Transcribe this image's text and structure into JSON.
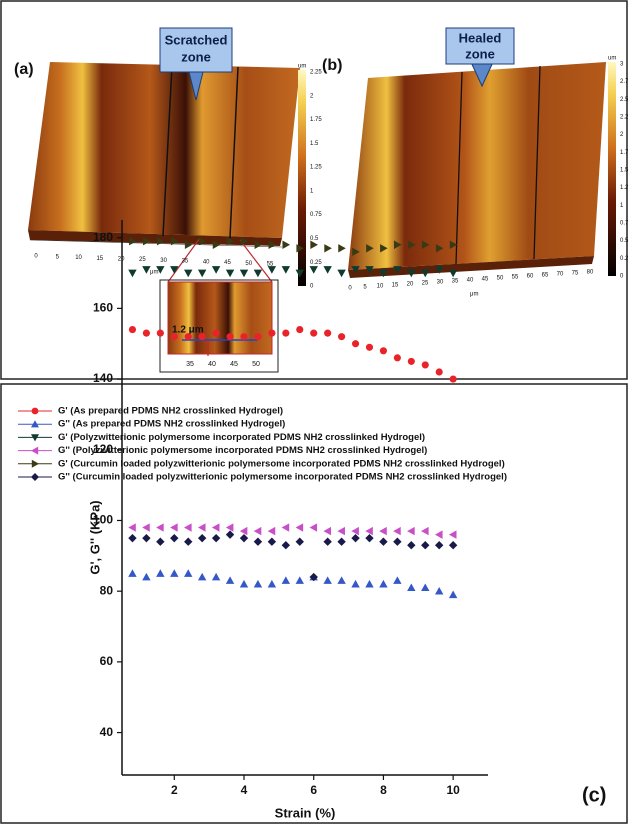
{
  "panels": {
    "a": {
      "label": "(a)",
      "callout": [
        "Scratched",
        "zone"
      ],
      "colorbar_unit": "um",
      "colorbar_ticks": [
        "2.25",
        "2",
        "1.75",
        "1.5",
        "1.25",
        "1",
        "0.75",
        "0.5",
        "0.25",
        "0"
      ],
      "x_ticks": [
        "0",
        "5",
        "10",
        "15",
        "20",
        "25",
        "30",
        "35",
        "40",
        "45",
        "50",
        "55"
      ],
      "x_unit": "μm",
      "inset": {
        "annotation": "1.2 μm",
        "x_ticks": [
          "35",
          "40",
          "45",
          "50"
        ]
      }
    },
    "b": {
      "label": "(b)",
      "callout": [
        "Healed",
        "zone"
      ],
      "colorbar_unit": "um",
      "colorbar_ticks": [
        "3",
        "2.75",
        "2.5",
        "2.25",
        "2",
        "1.75",
        "1.5",
        "1.25",
        "1",
        "0.75",
        "0.5",
        "0.25",
        "0"
      ],
      "x_ticks": [
        "0",
        "5",
        "10",
        "15",
        "20",
        "25",
        "30",
        "35",
        "40",
        "45",
        "50",
        "55",
        "60",
        "65",
        "70",
        "75",
        "80"
      ],
      "x_unit": "μm"
    },
    "c": {
      "label": "(c)"
    }
  },
  "chart_data": {
    "type": "scatter",
    "x_label": "Strain (%)",
    "y_label": "G', G'' (KPa)",
    "x": [
      0.8,
      1.2,
      1.6,
      2.0,
      2.4,
      2.8,
      3.2,
      3.6,
      4.0,
      4.4,
      4.8,
      5.2,
      5.6,
      6.0,
      6.4,
      6.8,
      7.2,
      7.6,
      8.0,
      8.4,
      8.8,
      9.2,
      9.6,
      10.0
    ],
    "xlim": [
      0.5,
      11
    ],
    "xticks": [
      2,
      4,
      6,
      8,
      10
    ],
    "ylim": [
      28,
      185
    ],
    "yticks": [
      40,
      60,
      80,
      100,
      120,
      140,
      160,
      180
    ],
    "series": [
      {
        "name": "G' (As prepared PDMS NH2 crosslinked Hydrogel)",
        "color": "#e8242a",
        "marker": "circle",
        "values": [
          154,
          153,
          153,
          152,
          152,
          152,
          153,
          152,
          152,
          152,
          153,
          153,
          154,
          153,
          153,
          152,
          150,
          149,
          148,
          146,
          145,
          144,
          142,
          140
        ]
      },
      {
        "name": "G'' (As prepared PDMS NH2 crosslinked Hydrogel)",
        "color": "#3558c9",
        "marker": "triangle-up",
        "values": [
          85,
          84,
          85,
          85,
          85,
          84,
          84,
          83,
          82,
          82,
          82,
          83,
          83,
          84,
          83,
          83,
          82,
          82,
          82,
          83,
          81,
          81,
          80,
          79
        ]
      },
      {
        "name": "G' (Polyzwitterionic polymersome incorporated PDMS NH2 crosslinked Hydrogel)",
        "color": "#103a2e",
        "marker": "triangle-down",
        "values": [
          170,
          171,
          171,
          171,
          170,
          170,
          171,
          170,
          170,
          170,
          171,
          171,
          170,
          171,
          171,
          170,
          171,
          171,
          170,
          171,
          170,
          170,
          171,
          170
        ]
      },
      {
        "name": "G'' (Polyzwitterionic polymersome incorporated PDMS NH2 crosslinked Hydrogel)",
        "color": "#c94fc8",
        "marker": "triangle-left",
        "values": [
          98,
          98,
          98,
          98,
          98,
          98,
          98,
          98,
          97,
          97,
          97,
          98,
          98,
          98,
          97,
          97,
          97,
          97,
          97,
          97,
          97,
          97,
          96,
          96
        ]
      },
      {
        "name": "G' (Curcumin loaded polyzwitterionic polymersome incorporated PDMS NH2 crosslinked Hydrogel)",
        "color": "#3a3a14",
        "marker": "triangle-right",
        "values": [
          179,
          179,
          179,
          179,
          178,
          179,
          178,
          179,
          179,
          178,
          178,
          178,
          177,
          178,
          177,
          177,
          176,
          177,
          177,
          178,
          178,
          178,
          177,
          178
        ]
      },
      {
        "name": "G'' (Curcumin loaded polyzwitterionic polymersome incorporated PDMS NH2 crosslinked Hydrogel)",
        "color": "#1a1a4a",
        "marker": "diamond",
        "values": [
          95,
          95,
          94,
          95,
          94,
          95,
          95,
          96,
          95,
          94,
          94,
          93,
          94,
          84,
          94,
          94,
          95,
          95,
          94,
          94,
          93,
          93,
          93,
          93
        ]
      }
    ]
  }
}
